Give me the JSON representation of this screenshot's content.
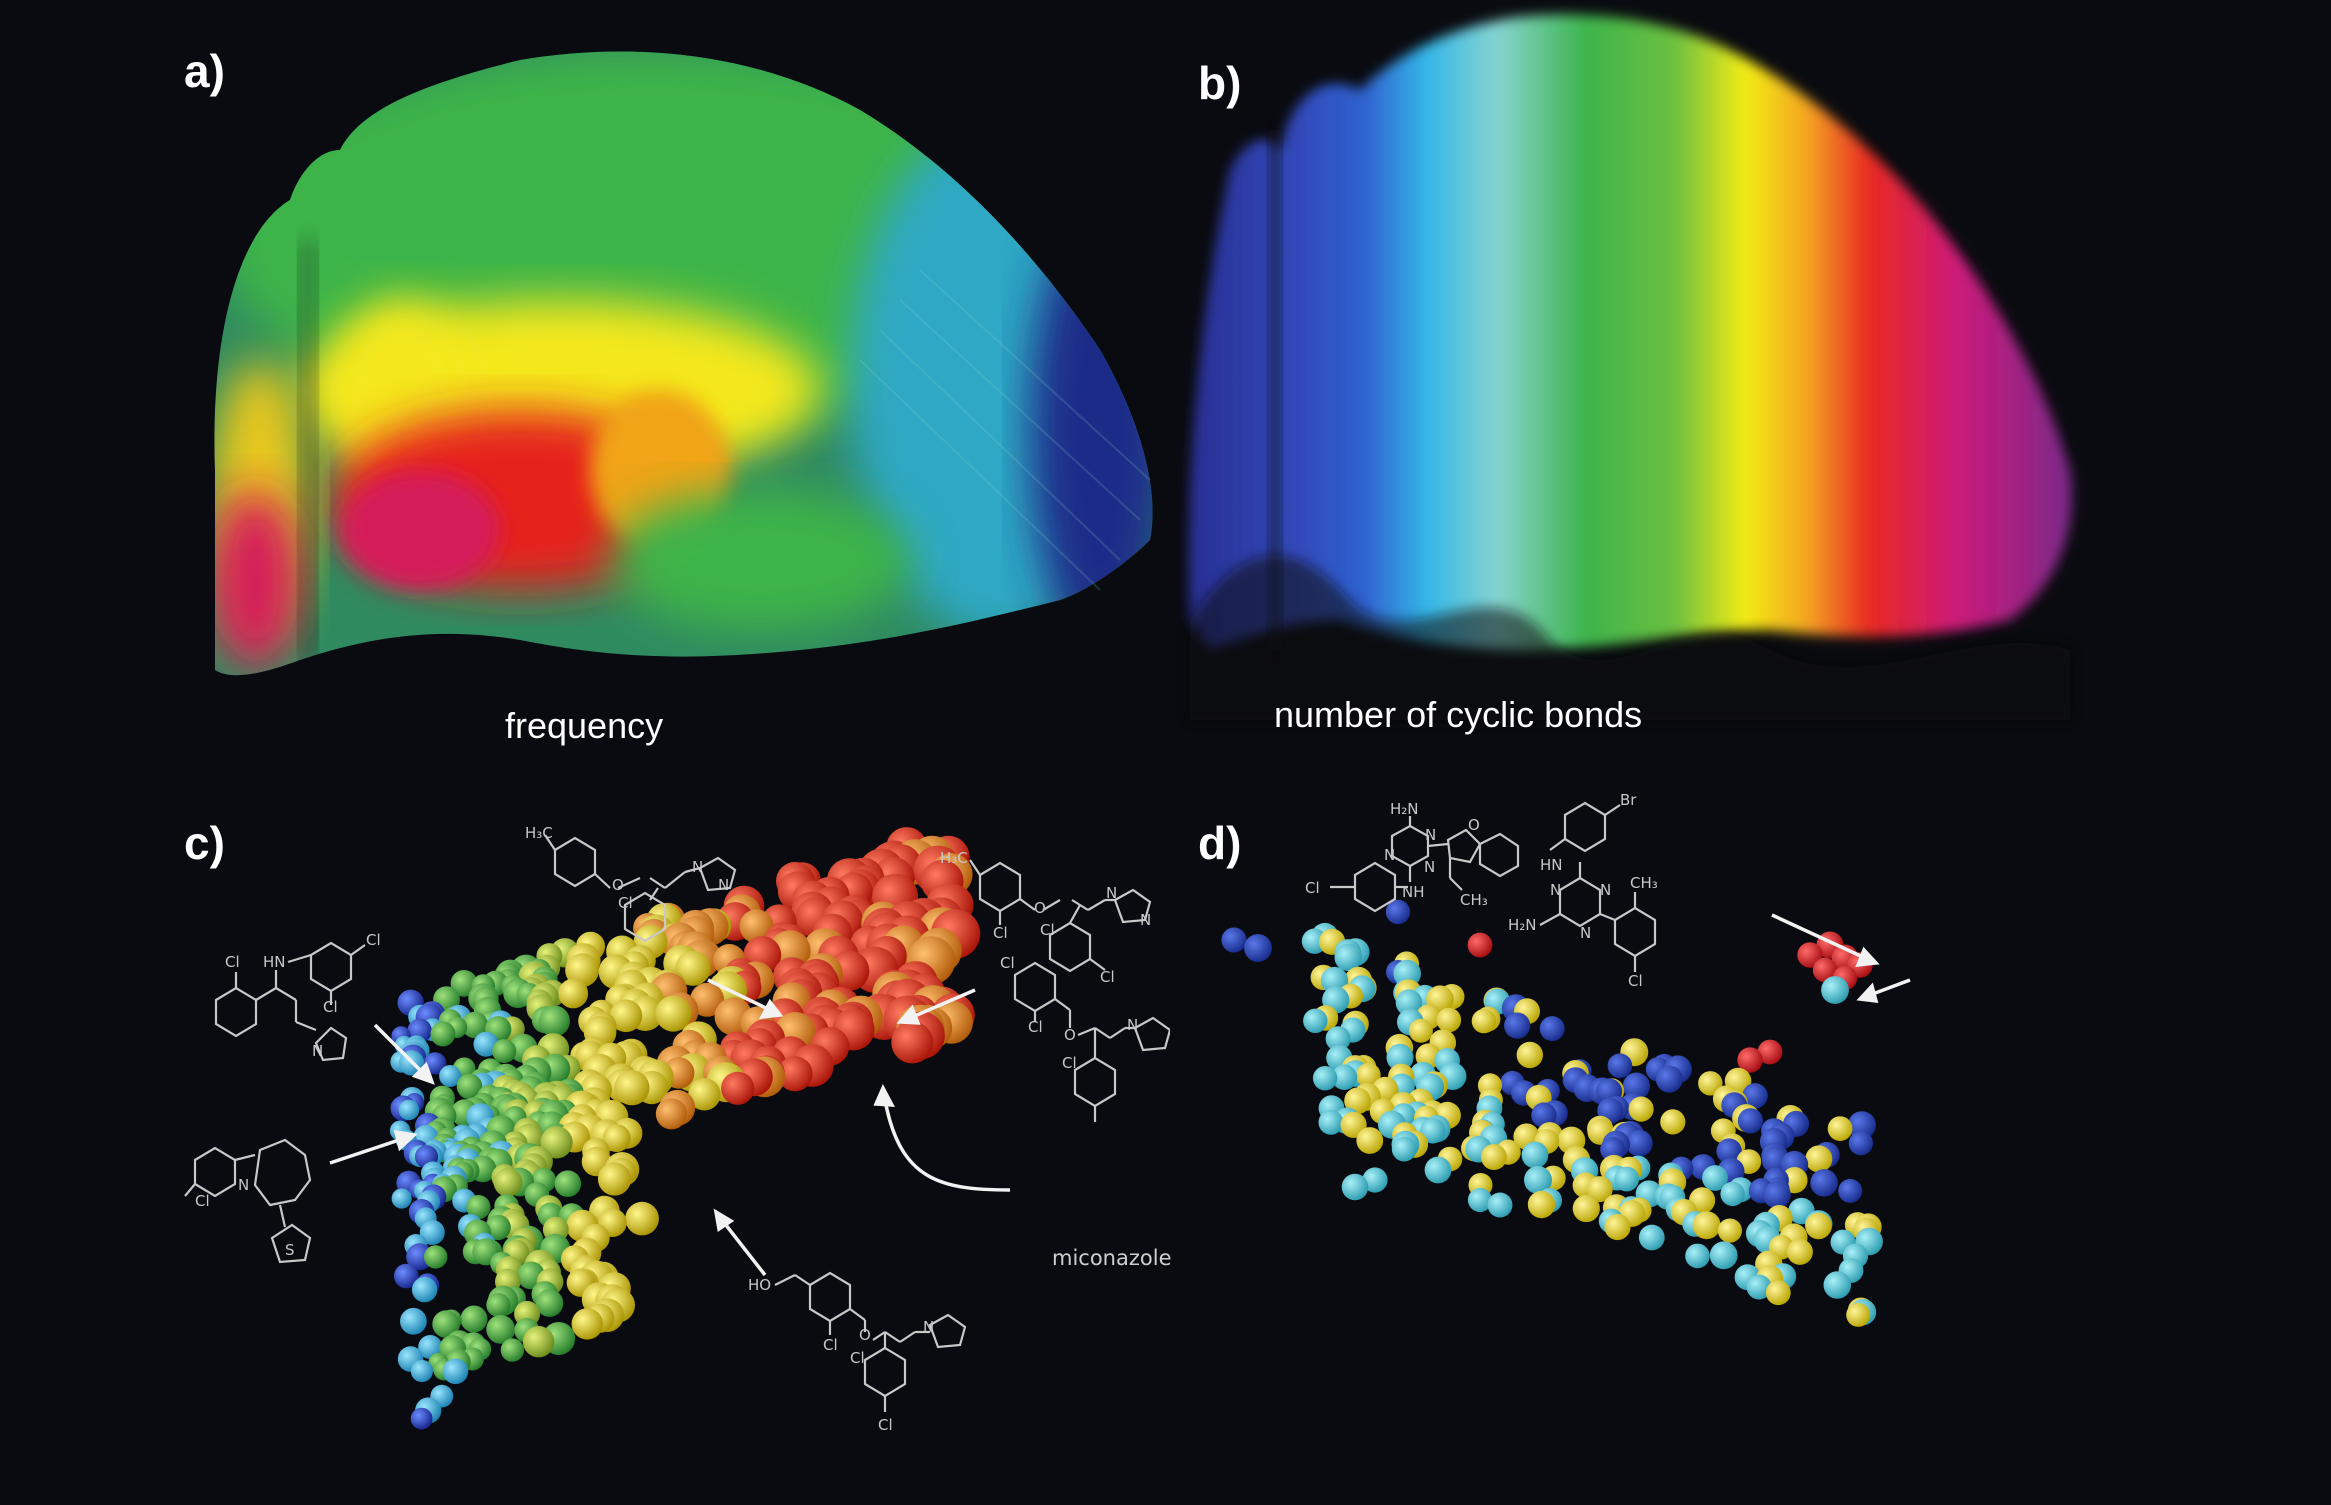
{
  "figure": {
    "background": "#0a0b10",
    "panels": {
      "a": {
        "label": "a)",
        "caption": "frequency",
        "description": "3D chemical space point cloud colored by frequency",
        "color_bands": [
          "#d81c5a",
          "#e8231e",
          "#f7ea10",
          "#3cb44a",
          "#3ab6c8",
          "#1e2f8c"
        ]
      },
      "b": {
        "label": "b)",
        "caption": "number of cyclic bonds",
        "description": "3D chemical space point cloud colored by number of cyclic bonds",
        "color_bands": [
          "#2a2f94",
          "#2f58c8",
          "#34b7e8",
          "#86d4d0",
          "#3cb44a",
          "#f2ec14",
          "#e82a20",
          "#cc1a7a",
          "#8a2a90"
        ]
      },
      "c": {
        "label": "c)",
        "description": "Sphere cluster of compounds with annotated chemical structures",
        "structures": [
          {
            "id": "c-top-left",
            "atoms": [
              "Cl",
              "HN",
              "Cl",
              "Cl",
              "N",
              "N"
            ]
          },
          {
            "id": "c-left",
            "atoms": [
              "Cl",
              "N",
              "S"
            ]
          },
          {
            "id": "c-top-middle",
            "atoms": [
              "H3C",
              "O",
              "N",
              "N",
              "Cl"
            ]
          },
          {
            "id": "c-top-right",
            "atoms": [
              "H3C",
              "O",
              "N",
              "N",
              "Cl",
              "Cl",
              "Cl"
            ]
          },
          {
            "id": "c-right-miconazole",
            "atoms": [
              "Cl",
              "Cl",
              "O",
              "N",
              "N",
              "Cl",
              "Cl"
            ],
            "name": "miconazole"
          },
          {
            "id": "c-bottom",
            "atoms": [
              "HO",
              "Cl",
              "O",
              "N",
              "Cl",
              "Cl"
            ]
          }
        ],
        "sphere_colors": [
          "#1f3fbf",
          "#34b0dc",
          "#49b842",
          "#a8cc2c",
          "#f2e41a",
          "#f0a020",
          "#e85a1c",
          "#e4261c"
        ]
      },
      "d": {
        "label": "d)",
        "description": "Sphere cluster of compounds colored by activity class with two annotated structures",
        "structures": [
          {
            "id": "d-top",
            "atoms": [
              "H2N",
              "N",
              "N",
              "N",
              "Cl",
              "NH",
              "O",
              "CH3"
            ]
          },
          {
            "id": "d-right",
            "atoms": [
              "Br",
              "HN",
              "N",
              "N",
              "N",
              "H2N",
              "CH3",
              "Cl"
            ]
          }
        ],
        "sphere_colors": {
          "blue": "#2540b0",
          "yellow": "#f3e41c",
          "cyan": "#48c8d8",
          "red": "#e21e24"
        }
      }
    }
  }
}
